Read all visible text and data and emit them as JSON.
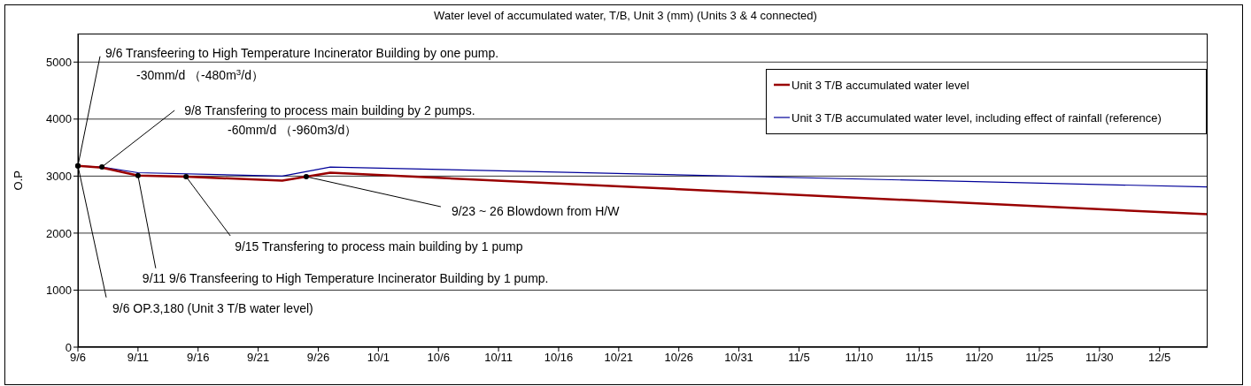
{
  "chart_data": {
    "type": "line",
    "title": "Water level of accumulated water, T/B, Unit 3 (mm) (Units 3 & 4 connected)",
    "ylabel": "O.P",
    "xlim": [
      "--09-06",
      "--12-09"
    ],
    "xticks": [
      {
        "value": "--09-06",
        "label": "9/6"
      },
      {
        "value": "--09-11",
        "label": "9/11"
      },
      {
        "value": "--09-16",
        "label": "9/16"
      },
      {
        "value": "--09-21",
        "label": "9/21"
      },
      {
        "value": "--09-26",
        "label": "9/26"
      },
      {
        "value": "--10-01",
        "label": "10/1"
      },
      {
        "value": "--10-06",
        "label": "10/6"
      },
      {
        "value": "--10-11",
        "label": "10/11"
      },
      {
        "value": "--10-16",
        "label": "10/16"
      },
      {
        "value": "--10-21",
        "label": "10/21"
      },
      {
        "value": "--10-26",
        "label": "10/26"
      },
      {
        "value": "--10-31",
        "label": "10/31"
      },
      {
        "value": "--11-05",
        "label": "11/5"
      },
      {
        "value": "--11-10",
        "label": "11/10"
      },
      {
        "value": "--11-15",
        "label": "11/15"
      },
      {
        "value": "--11-20",
        "label": "11/20"
      },
      {
        "value": "--11-25",
        "label": "11/25"
      },
      {
        "value": "--11-30",
        "label": "11/30"
      },
      {
        "value": "--12-05",
        "label": "12/5"
      }
    ],
    "ylim": [
      0,
      5500
    ],
    "yticks": [
      0,
      1000,
      2000,
      3000,
      4000,
      5000
    ],
    "grid": "y",
    "legend": "top right",
    "marker": "none",
    "series": [
      {
        "name": "Unit 3 T/B accumulated water level",
        "color": "#990000",
        "x": [
          "--09-06",
          "--09-08",
          "--09-11",
          "--09-15",
          "--09-23",
          "--09-27",
          "--12-09"
        ],
        "values": [
          3180,
          3150,
          3010,
          2990,
          2920,
          3060,
          2330
        ]
      },
      {
        "name": "Unit 3 T/B accumulated water level, including effect of rainfall (reference)",
        "color": "#000099",
        "x": [
          "--09-06",
          "--09-08",
          "--09-11",
          "--09-23",
          "--09-27",
          "--12-09"
        ],
        "values": [
          3180,
          3160,
          3060,
          3000,
          3160,
          2810
        ]
      }
    ],
    "annotations": [
      {
        "text": "9/6  Transfeering to High Temperature Incinerator Building by one pump.",
        "x": "--09-06",
        "y": 3180
      },
      "-30mm/d （-480m$^{3}$/d）",
      {
        "text": "9/8  Transfering to process main building by 2 pumps.",
        "x": "--09-08",
        "y": 3160
      },
      "-60mm/d （-960m3/d）",
      {
        "text": "9/23 ~ 26  Blowdown from H/W",
        "x": "--09-25",
        "y": 2990
      },
      {
        "text": "9/15  Transfering to process main building by 1 pump",
        "x": "--09-15",
        "y": 2990
      },
      {
        "text": "9/11  9/6  Transfeering to High Temperature Incinerator Building by 1 pump.",
        "x": "--09-11",
        "y": 3010
      },
      {
        "text": "9/6  OP.3,180 (Unit 3 T/B water level)",
        "x": "--09-06",
        "y": 3180
      }
    ]
  }
}
